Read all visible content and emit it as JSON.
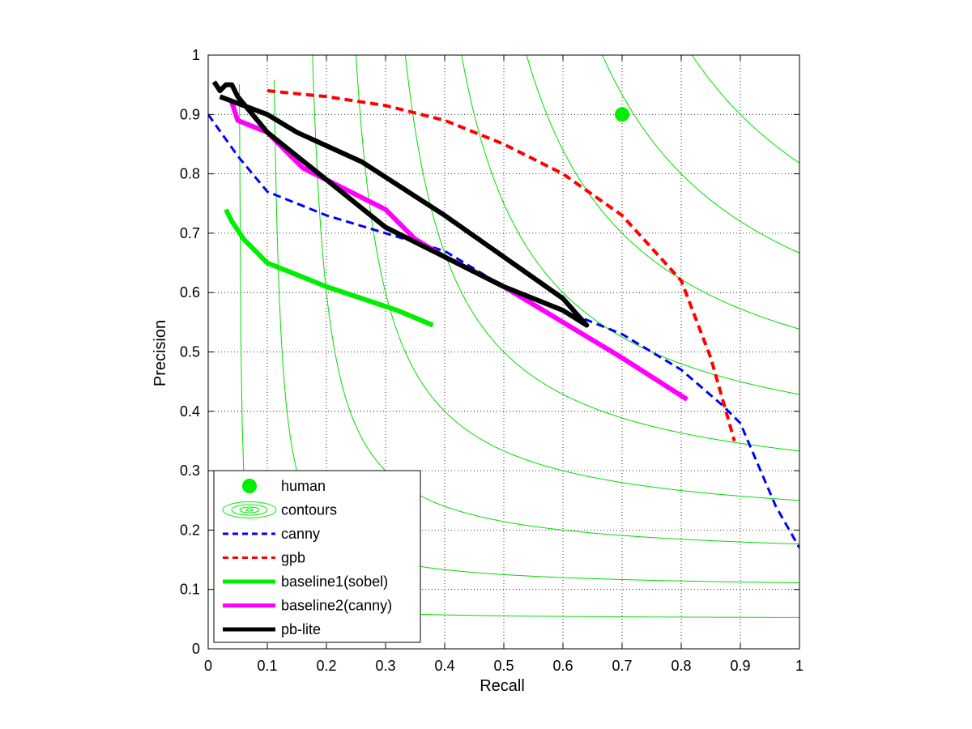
{
  "chart_data": {
    "type": "line",
    "xlabel": "Recall",
    "ylabel": "Precision",
    "xlim": [
      0,
      1
    ],
    "ylim": [
      0,
      1
    ],
    "xticks": [
      "0",
      "0.1",
      "0.2",
      "0.3",
      "0.4",
      "0.5",
      "0.6",
      "0.7",
      "0.8",
      "0.9",
      "1"
    ],
    "yticks": [
      "0",
      "0.1",
      "0.2",
      "0.3",
      "0.4",
      "0.5",
      "0.6",
      "0.7",
      "0.8",
      "0.9",
      "1"
    ],
    "grid": "dotted",
    "legend_position": "bottom-left",
    "contour_levels": [
      0.1,
      0.2,
      0.3,
      0.4,
      0.5,
      0.6,
      0.7,
      0.8,
      0.9
    ],
    "human_point": {
      "label": "human",
      "x": 0.7,
      "y": 0.9,
      "color": "#00ee00"
    },
    "series": [
      {
        "name": "canny",
        "color": "#0000ff",
        "style": "dashed",
        "width": 3,
        "x": [
          0.0,
          0.05,
          0.1,
          0.2,
          0.3,
          0.4,
          0.5,
          0.6,
          0.7,
          0.8,
          0.87,
          0.9,
          0.93,
          0.96,
          1.0
        ],
        "y": [
          0.9,
          0.83,
          0.77,
          0.73,
          0.7,
          0.67,
          0.61,
          0.57,
          0.53,
          0.47,
          0.41,
          0.38,
          0.31,
          0.24,
          0.17
        ]
      },
      {
        "name": "gpb",
        "color": "#ff0000",
        "style": "dashed",
        "width": 4,
        "x": [
          0.1,
          0.2,
          0.3,
          0.4,
          0.5,
          0.6,
          0.7,
          0.8,
          0.85,
          0.89
        ],
        "y": [
          0.94,
          0.93,
          0.915,
          0.89,
          0.85,
          0.8,
          0.73,
          0.62,
          0.49,
          0.35
        ]
      },
      {
        "name": "baseline1(sobel)",
        "color": "#00ee00",
        "style": "solid",
        "width": 6,
        "x": [
          0.03,
          0.04,
          0.06,
          0.1,
          0.15,
          0.2,
          0.26,
          0.32,
          0.38
        ],
        "y": [
          0.74,
          0.72,
          0.69,
          0.65,
          0.63,
          0.61,
          0.59,
          0.57,
          0.545
        ]
      },
      {
        "name": "baseline2(canny)",
        "color": "#ff00ff",
        "style": "solid",
        "width": 6,
        "x": [
          0.04,
          0.05,
          0.1,
          0.12,
          0.16,
          0.2,
          0.3,
          0.35,
          0.4,
          0.5,
          0.6,
          0.7,
          0.81
        ],
        "y": [
          0.92,
          0.89,
          0.87,
          0.85,
          0.81,
          0.79,
          0.74,
          0.69,
          0.66,
          0.61,
          0.55,
          0.49,
          0.42
        ]
      },
      {
        "name": "pb-lite",
        "color": "#000000",
        "style": "solid",
        "width": 6,
        "x": [
          0.01,
          0.02,
          0.03,
          0.04,
          0.05,
          0.1,
          0.2,
          0.3,
          0.4,
          0.5,
          0.6,
          0.64,
          0.6,
          0.5,
          0.4,
          0.26,
          0.15,
          0.1,
          0.02
        ],
        "y": [
          0.955,
          0.94,
          0.95,
          0.95,
          0.93,
          0.87,
          0.79,
          0.71,
          0.66,
          0.61,
          0.57,
          0.545,
          0.59,
          0.66,
          0.73,
          0.82,
          0.87,
          0.9,
          0.93
        ]
      }
    ],
    "legend": [
      {
        "label": "human",
        "kind": "marker",
        "color": "#00ee00"
      },
      {
        "label": "contours",
        "kind": "contour",
        "color": "#00ee00"
      },
      {
        "label": "canny",
        "kind": "dashed",
        "color": "#0000ff",
        "width": 3
      },
      {
        "label": "gpb",
        "kind": "dashed",
        "color": "#ff0000",
        "width": 3
      },
      {
        "label": "baseline1(sobel)",
        "kind": "solid",
        "color": "#00ee00",
        "width": 5
      },
      {
        "label": "baseline2(canny)",
        "kind": "solid",
        "color": "#ff00ff",
        "width": 5
      },
      {
        "label": "pb-lite",
        "kind": "solid",
        "color": "#000000",
        "width": 5
      }
    ]
  }
}
